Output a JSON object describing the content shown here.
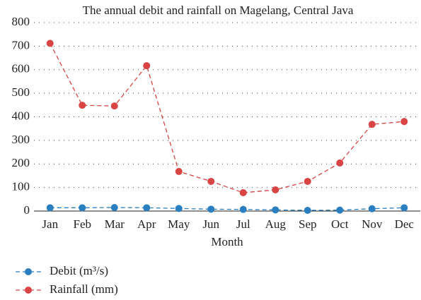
{
  "chart_data": {
    "type": "line",
    "title": "The annual debit and rainfall on Magelang, Central Java",
    "x_label": "Month",
    "categories": [
      "Jan",
      "Feb",
      "Mar",
      "Apr",
      "May",
      "Jun",
      "Jul",
      "Aug",
      "Sep",
      "Oct",
      "Nov",
      "Dec"
    ],
    "series": [
      {
        "name": "Debit (m³/s)",
        "color": "#2a7fc0",
        "values": [
          14,
          14,
          15,
          14,
          11,
          8,
          7,
          5,
          3,
          4,
          10,
          14
        ]
      },
      {
        "name": "Rainfall (mm)",
        "color": "#d94444",
        "values": [
          712,
          449,
          446,
          617,
          168,
          126,
          78,
          90,
          126,
          204,
          368,
          380
        ]
      }
    ],
    "ylim": [
      0,
      800
    ],
    "yticks": [
      0,
      100,
      200,
      300,
      400,
      500,
      600,
      700,
      800
    ],
    "grid": true
  }
}
